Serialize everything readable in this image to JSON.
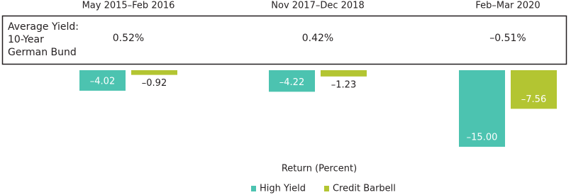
{
  "chart_data": {
    "type": "bar",
    "categories": [
      "May 2015–Feb 2016",
      "Nov 2017–Dec 2018",
      "Feb–Mar 2020"
    ],
    "series": [
      {
        "name": "High Yield",
        "color": "#4cc3b0",
        "values": [
          -4.02,
          -4.22,
          -15.0
        ],
        "value_labels": [
          "–4.02",
          "–4.22",
          "–15.00"
        ]
      },
      {
        "name": "Credit Barbell",
        "color": "#b3c532",
        "values": [
          -0.92,
          -1.23,
          -7.56
        ],
        "value_labels": [
          "–0.92",
          "–1.23",
          "–7.56"
        ]
      }
    ],
    "ylim": [
      -15,
      0
    ],
    "xlabel": "Return (Percent)",
    "yield_title": [
      "Average Yield:",
      "10-Year",
      "German Bund"
    ],
    "yield_labels": [
      "0.52%",
      "0.42%",
      "–0.51%"
    ]
  }
}
